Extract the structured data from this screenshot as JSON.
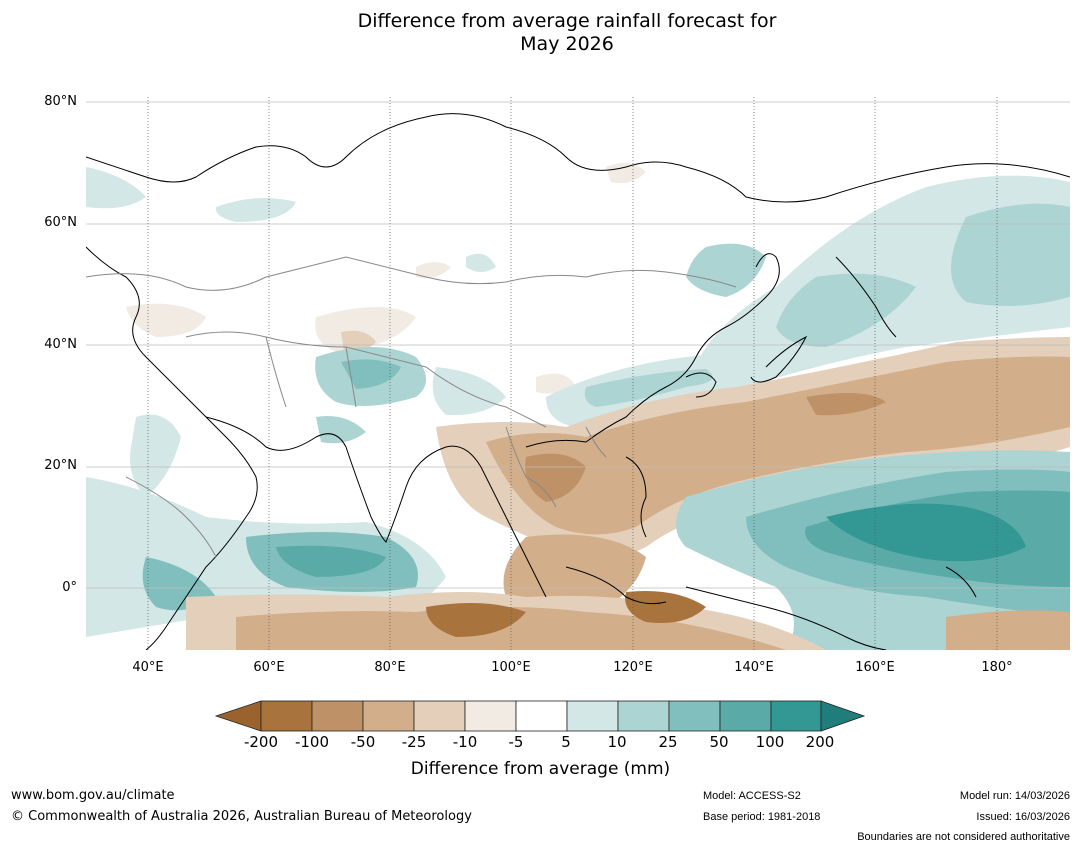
{
  "title": {
    "line1": "Difference from average rainfall forecast for",
    "line2": "May 2026"
  },
  "map": {
    "latitude_labels": [
      "80°N",
      "60°N",
      "40°N",
      "20°N",
      "0°"
    ],
    "longitude_labels": [
      "40°E",
      "60°E",
      "80°E",
      "100°E",
      "120°E",
      "140°E",
      "160°E",
      "180°"
    ]
  },
  "colorbar": {
    "title": "Difference from average (mm)",
    "ticks": [
      "-200",
      "-100",
      "-50",
      "-25",
      "-10",
      "-5",
      "5",
      "10",
      "25",
      "50",
      "100",
      "200"
    ],
    "colors": [
      "#9a622c",
      "#a8733c",
      "#bf9166",
      "#d2ae8a",
      "#e3cfba",
      "#f1ebe4",
      "#ffffff",
      "#d3e7e6",
      "#acd4d3",
      "#80bfbd",
      "#5aaaa8",
      "#339794",
      "#1f7e7b"
    ]
  },
  "footer": {
    "website": "www.bom.gov.au/climate",
    "copyright": "© Commonwealth of Australia 2026, Australian Bureau of Meteorology",
    "model": "Model: ACCESS-S2",
    "base_period": "Base period: 1981-2018",
    "model_run": "Model run: 14/03/2026",
    "issued": "Issued: 16/03/2026",
    "disclaimer": "Boundaries are not considered authoritative"
  }
}
